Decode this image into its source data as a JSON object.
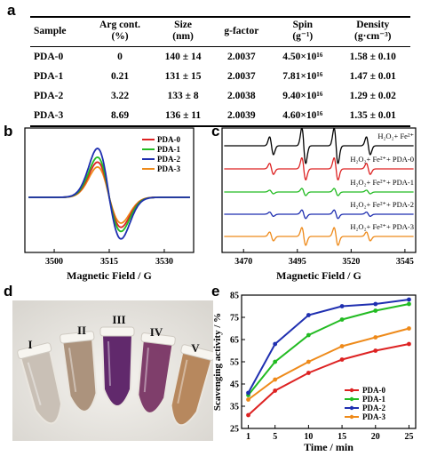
{
  "panel_labels": {
    "a": "a",
    "b": "b",
    "c": "c",
    "d": "d",
    "e": "e"
  },
  "table": {
    "headers": [
      "Sample",
      "Arg cont.",
      "Size",
      "g-factor",
      "Spin",
      "Density"
    ],
    "units": [
      "",
      "(%)",
      "(nm)",
      "",
      "(g⁻¹)",
      "(g·cm⁻³)"
    ],
    "rows": [
      [
        "PDA-0",
        "0",
        "140 ± 14",
        "2.0037",
        "4.50×10¹⁶",
        "1.58 ± 0.10"
      ],
      [
        "PDA-1",
        "0.21",
        "131 ± 15",
        "2.0037",
        "7.81×10¹⁶",
        "1.47 ± 0.01"
      ],
      [
        "PDA-2",
        "3.22",
        "133 ± 8",
        "2.0038",
        "9.40×10¹⁶",
        "1.29 ± 0.02"
      ],
      [
        "PDA-3",
        "8.69",
        "136 ± 11",
        "2.0039",
        "4.60×10¹⁶",
        "1.35 ± 0.01"
      ]
    ]
  },
  "chart_data": [
    {
      "type": "line",
      "panel": "b",
      "xlabel": "Magnetic Field / G",
      "xticks": [
        "3500",
        "3515",
        "3530"
      ],
      "xlim": [
        3492,
        3538
      ],
      "center": 3515,
      "series": [
        {
          "name": "PDA-0",
          "color": "#dd2222",
          "amplitude": 0.72
        },
        {
          "name": "PDA-1",
          "color": "#22bb22",
          "amplitude": 0.82
        },
        {
          "name": "PDA-2",
          "color": "#1f2fb0",
          "amplitude": 1.0
        },
        {
          "name": "PDA-3",
          "color": "#ee8a1a",
          "amplitude": 0.62
        }
      ]
    },
    {
      "type": "line",
      "panel": "c",
      "xlabel": "Magnetic Field / G",
      "xticks": [
        "3470",
        "3495",
        "3520",
        "3545"
      ],
      "xlim": [
        3460,
        3550
      ],
      "line_positions": [
        3483,
        3498,
        3513,
        3528
      ],
      "line_ratios": [
        1,
        2,
        2,
        1
      ],
      "series": [
        {
          "name": "H₂O₂+ Fe²⁺",
          "color": "#000000",
          "amplitude": 1.0
        },
        {
          "name": "H₂O₂+ Fe²⁺+ PDA-0",
          "color": "#dd2222",
          "amplitude": 0.62
        },
        {
          "name": "H₂O₂+ Fe²⁺+ PDA-1",
          "color": "#22bb22",
          "amplitude": 0.2
        },
        {
          "name": "H₂O₂+ Fe²⁺+ PDA-2",
          "color": "#1f2fb0",
          "amplitude": 0.24
        },
        {
          "name": "H₂O₂+ Fe²⁺+ PDA-3",
          "color": "#ee8a1a",
          "amplitude": 0.5
        }
      ]
    },
    {
      "type": "line",
      "panel": "e",
      "xlabel": "Time / min",
      "ylabel": "Scavenging activity / %",
      "x": [
        1,
        5,
        10,
        15,
        20,
        25
      ],
      "xlim": [
        0,
        26
      ],
      "ylim": [
        25,
        85
      ],
      "xticks": [
        1,
        5,
        10,
        15,
        20,
        25
      ],
      "yticks": [
        25,
        35,
        45,
        55,
        65,
        75,
        85
      ],
      "series": [
        {
          "name": "PDA-0",
          "color": "#dd2222",
          "values": [
            31,
            42,
            50,
            56,
            60,
            63
          ]
        },
        {
          "name": "PDA-1",
          "color": "#22bb22",
          "values": [
            40,
            55,
            67,
            74,
            78,
            81
          ]
        },
        {
          "name": "PDA-2",
          "color": "#1f2fb0",
          "values": [
            41,
            63,
            76,
            80,
            81,
            83
          ]
        },
        {
          "name": "PDA-3",
          "color": "#ee8a1a",
          "values": [
            38,
            47,
            55,
            62,
            66,
            70
          ]
        }
      ]
    }
  ],
  "photo": {
    "tube_labels": [
      "I",
      "II",
      "III",
      "IV",
      "V"
    ],
    "tube_colors": [
      "#c8bfb4",
      "#a98f78",
      "#5a1f66",
      "#7a3565",
      "#b58458"
    ]
  }
}
